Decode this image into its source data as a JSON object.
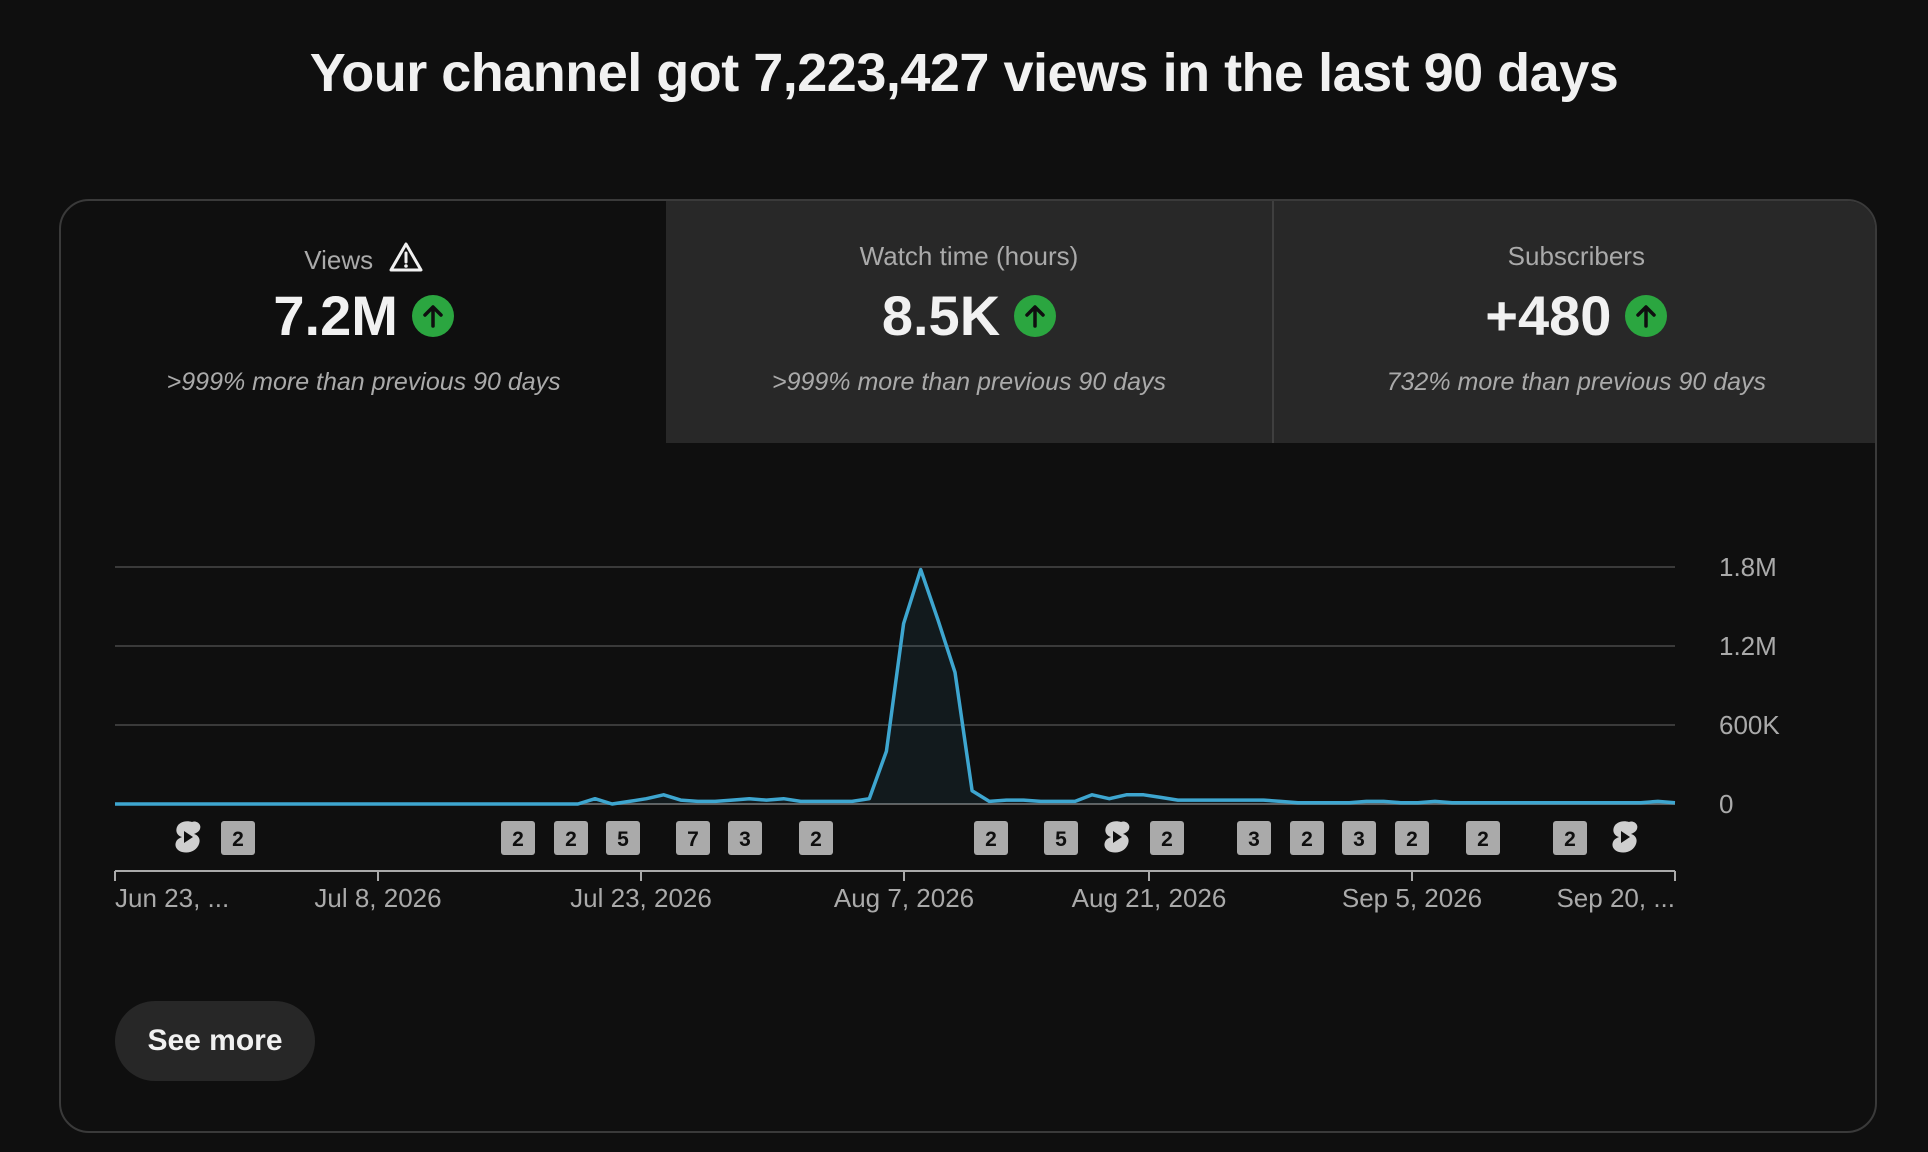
{
  "headline": "Your channel got 7,223,427 views in the last 90 days",
  "tabs": [
    {
      "label": "Views",
      "value": "7.2M",
      "comparison": ">999% more than previous 90 days",
      "active": true,
      "warning": true
    },
    {
      "label": "Watch time (hours)",
      "value": "8.5K",
      "comparison": ">999% more than previous 90 days",
      "active": false
    },
    {
      "label": "Subscribers",
      "value": "+480",
      "comparison": "732% more than previous 90 days",
      "active": false
    }
  ],
  "icons": {
    "warning": "warning-triangle-icon",
    "trend": "arrow-up-icon",
    "short": "shorts-icon"
  },
  "colors": {
    "line": "#3ea6d0",
    "trend_up": "#2ba640",
    "marker": "#aaaaaa"
  },
  "chart_data": {
    "type": "line",
    "series": [
      {
        "name": "Views",
        "values": [
          0,
          0,
          0,
          0,
          0,
          0,
          0,
          0,
          0,
          0,
          0,
          0,
          0,
          0,
          0,
          0,
          0,
          0,
          0,
          0,
          0,
          0,
          0,
          0,
          0,
          0,
          0,
          0,
          40000,
          0,
          20000,
          40000,
          70000,
          30000,
          20000,
          20000,
          30000,
          40000,
          30000,
          40000,
          20000,
          20000,
          20000,
          20000,
          40000,
          400000,
          1370000,
          1780000,
          1400000,
          1000000,
          100000,
          20000,
          30000,
          30000,
          20000,
          20000,
          20000,
          70000,
          40000,
          70000,
          70000,
          50000,
          30000,
          30000,
          30000,
          30000,
          30000,
          30000,
          20000,
          10000,
          10000,
          10000,
          10000,
          20000,
          20000,
          10000,
          10000,
          20000,
          10000,
          10000,
          10000,
          10000,
          10000,
          10000,
          10000,
          10000,
          10000,
          10000,
          10000,
          10000,
          20000,
          10000
        ]
      }
    ],
    "y_ticks": [
      "1.8M",
      "1.2M",
      "600K",
      "0"
    ],
    "ylim": [
      0,
      1800000
    ],
    "x_tick_labels": [
      "Jun 23, ...",
      "Jul 8, 2026",
      "Jul 23, 2026",
      "Aug 7, 2026",
      "Aug 21, 2026",
      "Sep 5, 2026",
      "Sep 20, ..."
    ],
    "grid": true,
    "markers": [
      {
        "kind": "short",
        "label": ""
      },
      {
        "kind": "count",
        "label": "2"
      },
      {
        "kind": "count",
        "label": "2"
      },
      {
        "kind": "count",
        "label": "2"
      },
      {
        "kind": "count",
        "label": "5"
      },
      {
        "kind": "count",
        "label": "7"
      },
      {
        "kind": "count",
        "label": "3"
      },
      {
        "kind": "count",
        "label": "2"
      },
      {
        "kind": "count",
        "label": "2"
      },
      {
        "kind": "count",
        "label": "5"
      },
      {
        "kind": "short",
        "label": ""
      },
      {
        "kind": "count",
        "label": "2"
      },
      {
        "kind": "count",
        "label": "3"
      },
      {
        "kind": "count",
        "label": "2"
      },
      {
        "kind": "count",
        "label": "3"
      },
      {
        "kind": "count",
        "label": "2"
      },
      {
        "kind": "count",
        "label": "2"
      },
      {
        "kind": "count",
        "label": "2"
      },
      {
        "kind": "short",
        "label": ""
      }
    ]
  },
  "see_more_label": "See more"
}
